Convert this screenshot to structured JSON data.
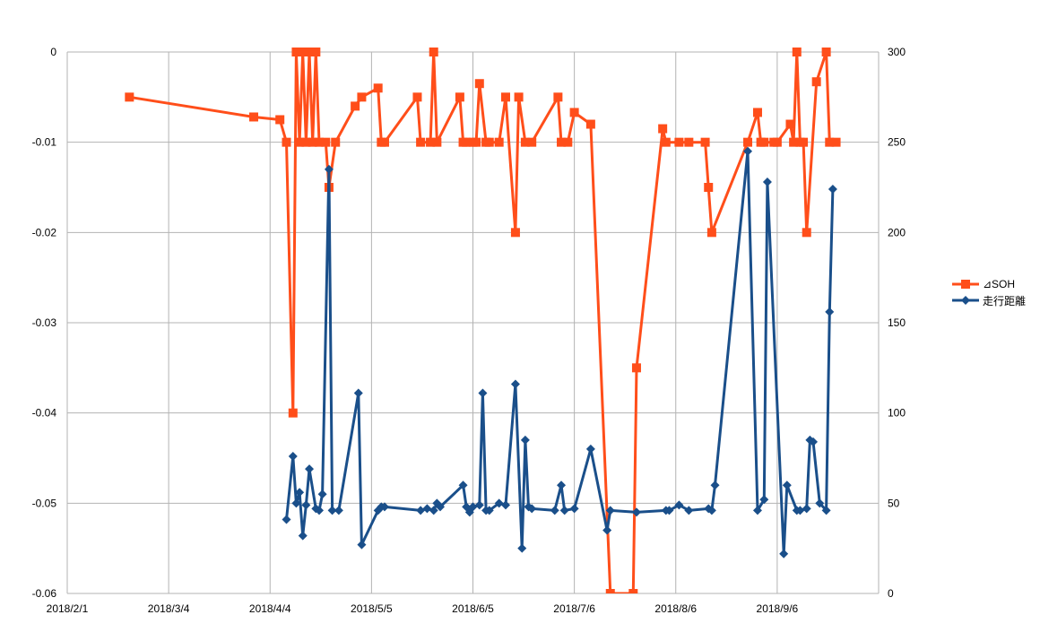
{
  "chart_data": {
    "type": "line",
    "title": "",
    "x_tick_labels": [
      "2018/2/1",
      "2018/3/4",
      "2018/4/4",
      "2018/5/5",
      "2018/6/5",
      "2018/7/6",
      "2018/8/6",
      "2018/9/6"
    ],
    "x_ticks": [
      "2018-02-01",
      "2018-03-04",
      "2018-04-04",
      "2018-05-05",
      "2018-06-05",
      "2018-07-06",
      "2018-08-06",
      "2018-09-06"
    ],
    "xlim": [
      "2018-02-01",
      "2018-10-07"
    ],
    "y_left": {
      "range": [
        -0.06,
        0
      ],
      "ticks": [
        0,
        -0.01,
        -0.02,
        -0.03,
        -0.04,
        -0.05,
        -0.06
      ],
      "tick_labels": [
        "0",
        "-0.01",
        "-0.02",
        "-0.03",
        "-0.04",
        "-0.05",
        "-0.06"
      ]
    },
    "y_right": {
      "range": [
        0,
        300
      ],
      "ticks": [
        300,
        250,
        200,
        150,
        100,
        50,
        0
      ],
      "tick_labels": [
        "300",
        "250",
        "200",
        "150",
        "100",
        "50",
        "0"
      ]
    },
    "grid": true,
    "legend_position": "right",
    "series": [
      {
        "name": "⊿SOH",
        "axis": "left",
        "color": "#ff4e1a",
        "marker": "square",
        "points": [
          [
            "2018-02-20",
            -0.005
          ],
          [
            "2018-03-30",
            -0.0072
          ],
          [
            "2018-04-07",
            -0.0075
          ],
          [
            "2018-04-09",
            -0.01
          ],
          [
            "2018-04-11",
            -0.04
          ],
          [
            "2018-04-12",
            0
          ],
          [
            "2018-04-13",
            -0.01
          ],
          [
            "2018-04-14",
            0
          ],
          [
            "2018-04-15",
            -0.01
          ],
          [
            "2018-04-16",
            0
          ],
          [
            "2018-04-17",
            -0.01
          ],
          [
            "2018-04-18",
            0
          ],
          [
            "2018-04-19",
            -0.01
          ],
          [
            "2018-04-21",
            -0.01
          ],
          [
            "2018-04-22",
            -0.015
          ],
          [
            "2018-04-24",
            -0.01
          ],
          [
            "2018-04-30",
            -0.006
          ],
          [
            "2018-05-02",
            -0.005
          ],
          [
            "2018-05-07",
            -0.004
          ],
          [
            "2018-05-08",
            -0.01
          ],
          [
            "2018-05-09",
            -0.01
          ],
          [
            "2018-05-19",
            -0.005
          ],
          [
            "2018-05-20",
            -0.01
          ],
          [
            "2018-05-23",
            -0.01
          ],
          [
            "2018-05-24",
            0
          ],
          [
            "2018-05-25",
            -0.01
          ],
          [
            "2018-06-01",
            -0.005
          ],
          [
            "2018-06-02",
            -0.01
          ],
          [
            "2018-06-03",
            -0.01
          ],
          [
            "2018-06-05",
            -0.01
          ],
          [
            "2018-06-06",
            -0.01
          ],
          [
            "2018-06-07",
            -0.0035
          ],
          [
            "2018-06-09",
            -0.01
          ],
          [
            "2018-06-10",
            -0.01
          ],
          [
            "2018-06-13",
            -0.01
          ],
          [
            "2018-06-15",
            -0.005
          ],
          [
            "2018-06-18",
            -0.02
          ],
          [
            "2018-06-19",
            -0.005
          ],
          [
            "2018-06-21",
            -0.01
          ],
          [
            "2018-06-23",
            -0.01
          ],
          [
            "2018-07-01",
            -0.005
          ],
          [
            "2018-07-02",
            -0.01
          ],
          [
            "2018-07-04",
            -0.01
          ],
          [
            "2018-07-06",
            -0.0067
          ],
          [
            "2018-07-11",
            -0.008
          ],
          [
            "2018-07-17",
            -0.06
          ],
          [
            "2018-07-24",
            -0.06
          ],
          [
            "2018-07-25",
            -0.035
          ],
          [
            "2018-08-02",
            -0.0085
          ],
          [
            "2018-08-03",
            -0.01
          ],
          [
            "2018-08-07",
            -0.01
          ],
          [
            "2018-08-10",
            -0.01
          ],
          [
            "2018-08-15",
            -0.01
          ],
          [
            "2018-08-16",
            -0.015
          ],
          [
            "2018-08-17",
            -0.02
          ],
          [
            "2018-08-28",
            -0.01
          ],
          [
            "2018-08-31",
            -0.0067
          ],
          [
            "2018-09-01",
            -0.01
          ],
          [
            "2018-09-02",
            -0.01
          ],
          [
            "2018-09-05",
            -0.01
          ],
          [
            "2018-09-06",
            -0.01
          ],
          [
            "2018-09-10",
            -0.008
          ],
          [
            "2018-09-11",
            -0.01
          ],
          [
            "2018-09-12",
            0
          ],
          [
            "2018-09-13",
            -0.01
          ],
          [
            "2018-09-14",
            -0.01
          ],
          [
            "2018-09-15",
            -0.02
          ],
          [
            "2018-09-18",
            -0.0033
          ],
          [
            "2018-09-21",
            0
          ],
          [
            "2018-09-22",
            -0.01
          ],
          [
            "2018-09-24",
            -0.01
          ]
        ]
      },
      {
        "name": "走行距離",
        "axis": "right",
        "color": "#1a4f8a",
        "marker": "diamond",
        "points": [
          [
            "2018-04-09",
            41
          ],
          [
            "2018-04-11",
            76
          ],
          [
            "2018-04-12",
            50
          ],
          [
            "2018-04-13",
            56
          ],
          [
            "2018-04-14",
            32
          ],
          [
            "2018-04-15",
            49
          ],
          [
            "2018-04-16",
            69
          ],
          [
            "2018-04-18",
            47
          ],
          [
            "2018-04-19",
            46
          ],
          [
            "2018-04-20",
            55
          ],
          [
            "2018-04-22",
            235
          ],
          [
            "2018-04-23",
            46
          ],
          [
            "2018-04-25",
            46
          ],
          [
            "2018-05-01",
            111
          ],
          [
            "2018-05-02",
            27
          ],
          [
            "2018-05-07",
            46
          ],
          [
            "2018-05-08",
            48
          ],
          [
            "2018-05-09",
            48
          ],
          [
            "2018-05-20",
            46
          ],
          [
            "2018-05-22",
            47
          ],
          [
            "2018-05-24",
            46
          ],
          [
            "2018-05-25",
            50
          ],
          [
            "2018-05-26",
            48
          ],
          [
            "2018-06-02",
            60
          ],
          [
            "2018-06-03",
            48
          ],
          [
            "2018-06-04",
            45
          ],
          [
            "2018-06-05",
            48
          ],
          [
            "2018-06-07",
            49
          ],
          [
            "2018-06-08",
            111
          ],
          [
            "2018-06-09",
            46
          ],
          [
            "2018-06-10",
            46
          ],
          [
            "2018-06-13",
            50
          ],
          [
            "2018-06-15",
            49
          ],
          [
            "2018-06-18",
            116
          ],
          [
            "2018-06-20",
            25
          ],
          [
            "2018-06-21",
            85
          ],
          [
            "2018-06-22",
            48
          ],
          [
            "2018-06-23",
            47
          ],
          [
            "2018-06-30",
            46
          ],
          [
            "2018-07-02",
            60
          ],
          [
            "2018-07-03",
            46
          ],
          [
            "2018-07-06",
            47
          ],
          [
            "2018-07-11",
            80
          ],
          [
            "2018-07-16",
            35
          ],
          [
            "2018-07-17",
            46
          ],
          [
            "2018-07-25",
            45
          ],
          [
            "2018-08-03",
            46
          ],
          [
            "2018-08-04",
            46
          ],
          [
            "2018-08-07",
            49
          ],
          [
            "2018-08-10",
            46
          ],
          [
            "2018-08-16",
            47
          ],
          [
            "2018-08-17",
            46
          ],
          [
            "2018-08-18",
            60
          ],
          [
            "2018-08-28",
            245
          ],
          [
            "2018-08-31",
            46
          ],
          [
            "2018-09-02",
            52
          ],
          [
            "2018-09-03",
            228
          ],
          [
            "2018-09-08",
            22
          ],
          [
            "2018-09-09",
            60
          ],
          [
            "2018-09-12",
            46
          ],
          [
            "2018-09-13",
            46
          ],
          [
            "2018-09-15",
            47
          ],
          [
            "2018-09-16",
            85
          ],
          [
            "2018-09-17",
            84
          ],
          [
            "2018-09-19",
            50
          ],
          [
            "2018-09-21",
            46
          ],
          [
            "2018-09-22",
            156
          ],
          [
            "2018-09-23",
            224
          ]
        ]
      }
    ]
  }
}
